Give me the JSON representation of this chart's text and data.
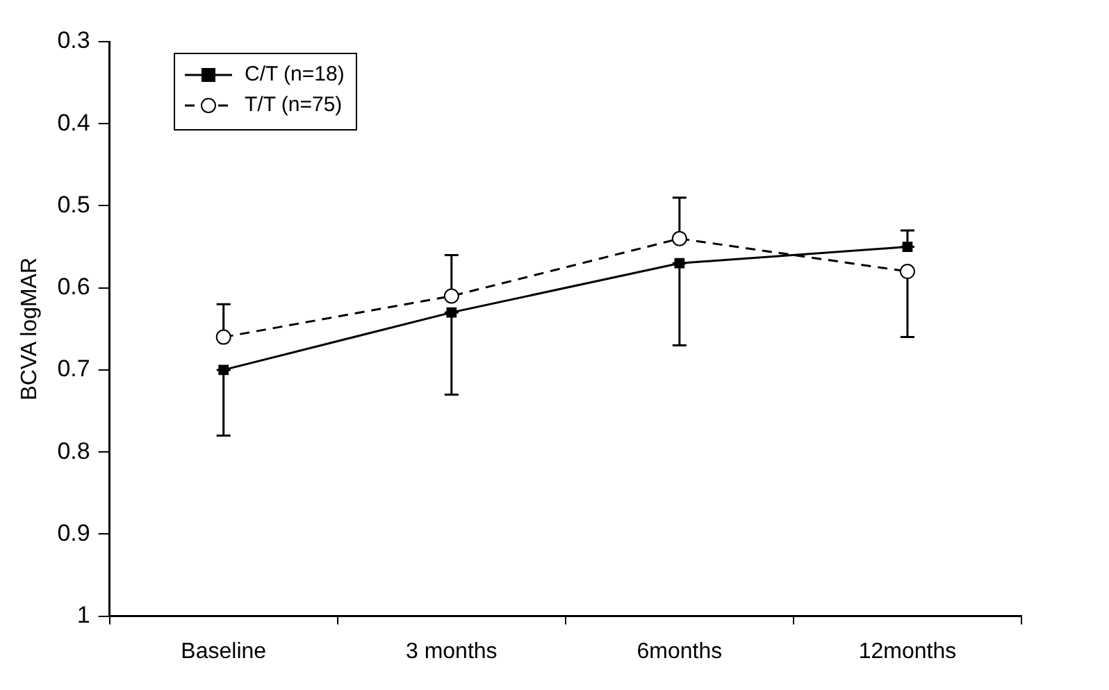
{
  "chart_data": {
    "type": "line",
    "ylabel": "BCVA logMAR",
    "categories": [
      "Baseline",
      "3 months",
      "6months",
      "12months"
    ],
    "series": [
      {
        "name": "C/T (n=18)",
        "color": "#000000",
        "marker": "square",
        "line_style": "solid",
        "values": [
          0.7,
          0.63,
          0.57,
          0.55
        ],
        "errors": [
          [
            0.7,
            0.78
          ],
          [
            0.63,
            0.73
          ],
          [
            0.57,
            0.67
          ],
          [
            0.53,
            0.55
          ]
        ]
      },
      {
        "name": "T/T (n=75)",
        "color": "#000000",
        "marker": "circle",
        "line_style": "dashed",
        "values": [
          0.66,
          0.61,
          0.54,
          0.58
        ],
        "errors": [
          [
            0.62,
            0.66
          ],
          [
            0.56,
            0.61
          ],
          [
            0.49,
            0.54
          ],
          [
            0.58,
            0.66
          ]
        ]
      }
    ],
    "ylim": [
      1,
      0.3
    ],
    "yticks": [
      0.3,
      0.4,
      0.5,
      0.6,
      0.7,
      0.8,
      0.9,
      1
    ],
    "grid": false,
    "legend": "top left"
  }
}
